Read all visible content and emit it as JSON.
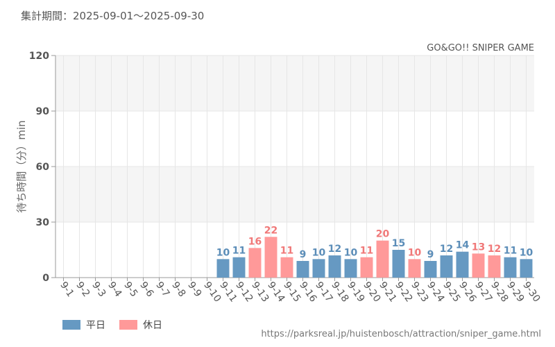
{
  "header": {
    "period": "集計期間：2025-09-01～2025-09-30"
  },
  "footer": {
    "url": "https://parksreal.jp/huistenbosch/attraction/sniper_game.html"
  },
  "colors": {
    "weekday": "#6699c2",
    "holiday": "#ff9999",
    "weekday_label": "#5b8db8",
    "holiday_label": "#f07878",
    "holiday_tick": "#ee7777",
    "grid": "#e6e6e6",
    "band": "#f5f5f5"
  },
  "chart_data": {
    "type": "bar",
    "title": "GO&GO!! SNIPER GAME",
    "ylabel": "待ち時間（分）min",
    "xlabel": "",
    "ylim": [
      0,
      120
    ],
    "yticks": [
      0,
      30,
      60,
      90,
      120
    ],
    "categories": [
      "9-1",
      "9-2",
      "9-3",
      "9-4",
      "9-5",
      "9-6",
      "9-7",
      "9-8",
      "9-9",
      "9-10",
      "9-11",
      "9-12",
      "9-13",
      "9-14",
      "9-15",
      "9-16",
      "9-17",
      "9-18",
      "9-19",
      "9-20",
      "9-21",
      "9-22",
      "9-23",
      "9-24",
      "9-25",
      "9-26",
      "9-27",
      "9-28",
      "9-29",
      "9-30"
    ],
    "values": [
      null,
      null,
      null,
      null,
      null,
      null,
      null,
      null,
      null,
      null,
      10,
      11,
      16,
      22,
      11,
      9,
      10,
      12,
      10,
      11,
      20,
      15,
      10,
      9,
      12,
      14,
      13,
      12,
      11,
      10
    ],
    "holiday": [
      false,
      false,
      false,
      false,
      false,
      true,
      true,
      false,
      false,
      false,
      false,
      false,
      true,
      true,
      true,
      false,
      false,
      false,
      false,
      true,
      true,
      false,
      true,
      false,
      false,
      false,
      true,
      true,
      false,
      false
    ],
    "legend": [
      {
        "name": "平日",
        "type": "weekday"
      },
      {
        "name": "休日",
        "type": "holiday"
      }
    ],
    "legend_position": "bottom-left",
    "grid": true
  }
}
